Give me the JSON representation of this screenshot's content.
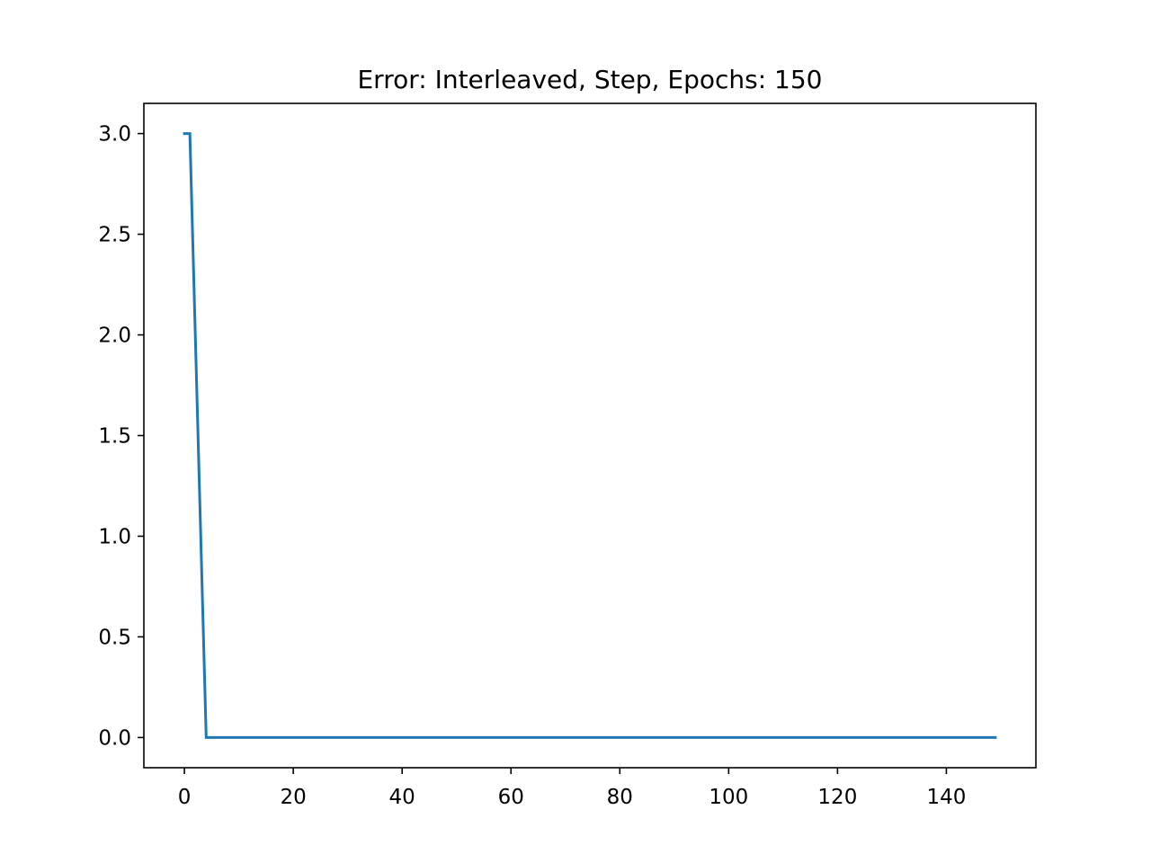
{
  "chart_data": {
    "type": "line",
    "title": "Error: Interleaved, Step, Epochs: 150",
    "xlabel": "",
    "ylabel": "",
    "xlim": [
      -7.45,
      156.45
    ],
    "ylim": [
      -0.15,
      3.15
    ],
    "x_ticks": [
      0,
      20,
      40,
      60,
      80,
      100,
      120,
      140
    ],
    "x_tick_labels": [
      "0",
      "20",
      "40",
      "60",
      "80",
      "100",
      "120",
      "140"
    ],
    "y_ticks": [
      0.0,
      0.5,
      1.0,
      1.5,
      2.0,
      2.5,
      3.0
    ],
    "y_tick_labels": [
      "0.0",
      "0.5",
      "1.0",
      "1.5",
      "2.0",
      "2.5",
      "3.0"
    ],
    "grid": false,
    "series": [
      {
        "color": "#1f77b4",
        "x": [
          0,
          1,
          4,
          149
        ],
        "y": [
          3.0,
          3.0,
          0.0,
          0.0
        ]
      }
    ]
  }
}
